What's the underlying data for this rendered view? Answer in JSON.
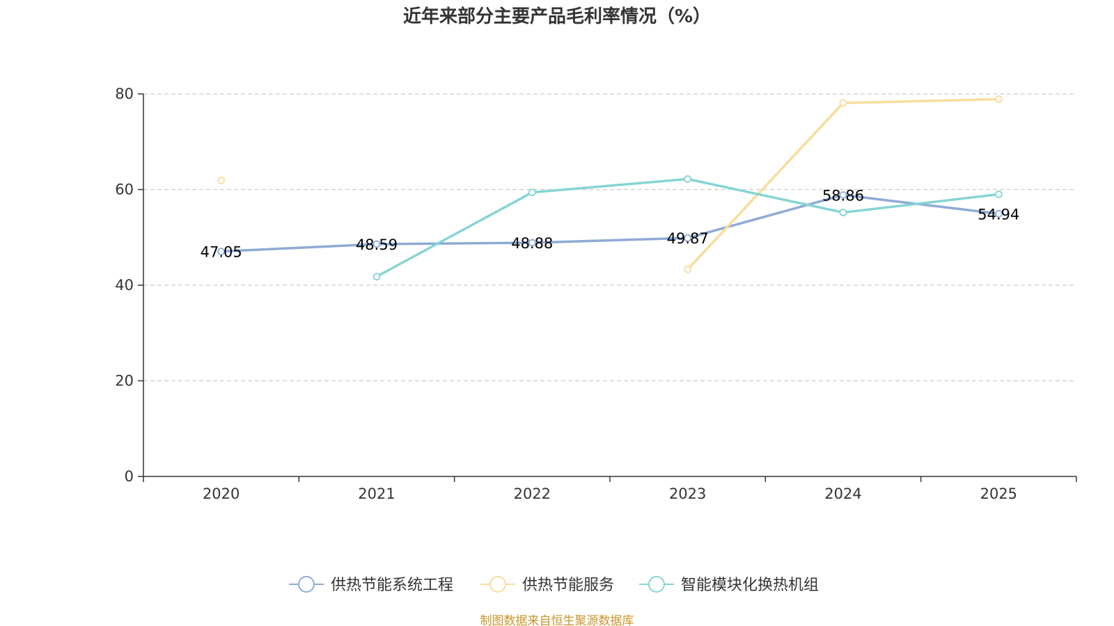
{
  "title": "近年来部分主要产品毛利率情况（%）",
  "source_note": "制图数据来自恒生聚源数据库",
  "colors": {
    "series_1": "#8eaad6",
    "series_2": "#f9dc9a",
    "series_3": "#86d4d4",
    "axis": "#333333",
    "grid": "#cccccc",
    "source": "#c8952a"
  },
  "chart_data": {
    "type": "line",
    "title": "近年来部分主要产品毛利率情况（%）",
    "xlabel": "",
    "ylabel": "",
    "categories": [
      "2020",
      "2021",
      "2022",
      "2023",
      "2024",
      "2025"
    ],
    "ylim": [
      0,
      80
    ],
    "yticks": [
      "0",
      "20",
      "40",
      "60",
      "80"
    ],
    "grid": true,
    "legend_position": "bottom-center",
    "series": [
      {
        "name": "供热节能系统工程",
        "values": [
          47.05,
          48.59,
          48.88,
          49.87,
          58.86,
          54.94
        ],
        "labels": [
          "47.05",
          "48.59",
          "48.88",
          "49.87",
          "58.86",
          "54.94"
        ]
      },
      {
        "name": "供热节能服务",
        "values": [
          61.9,
          null,
          null,
          43.3,
          78.1,
          78.9
        ],
        "labels": []
      },
      {
        "name": "智能模块化换热机组",
        "values": [
          null,
          41.8,
          59.4,
          62.2,
          55.2,
          59.0
        ],
        "labels": []
      }
    ]
  }
}
